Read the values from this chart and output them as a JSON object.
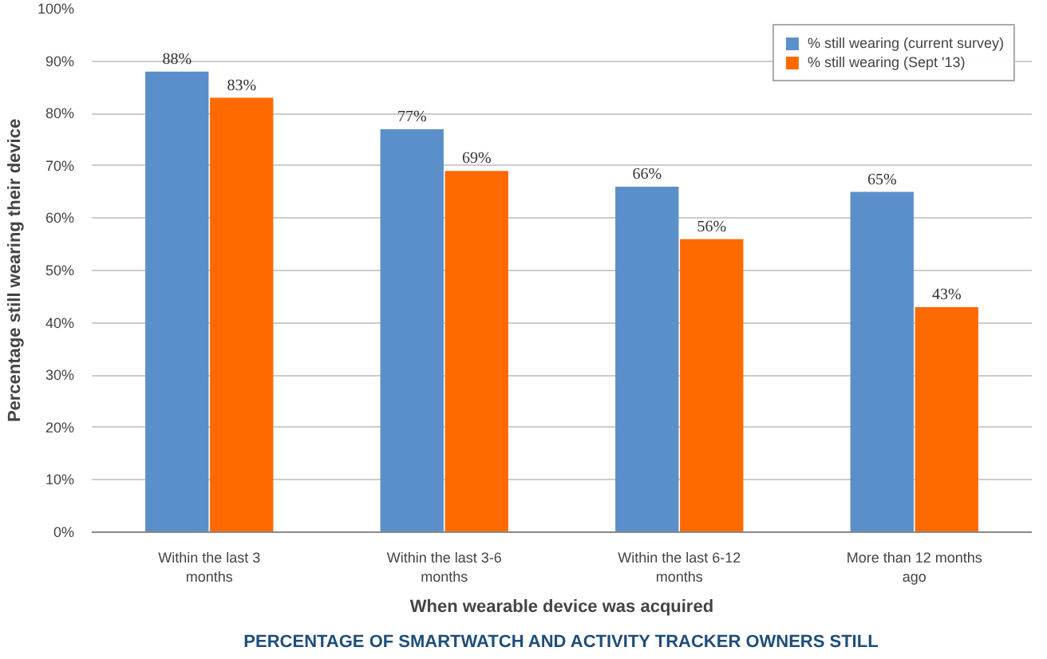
{
  "chart_data": {
    "type": "bar",
    "xlabel": "When wearable device was acquired",
    "ylabel": "Percentage still wearing their device",
    "categories": [
      "Within the last 3\nmonths",
      "Within the last 3-6\nmonths",
      "Within the last 6-12\nmonths",
      "More than 12 months\nago"
    ],
    "series": [
      {
        "name": "% still wearing (current survey)",
        "color": "#5b8fc9",
        "values": [
          88,
          77,
          66,
          65
        ],
        "value_labels": [
          "88%",
          "77%",
          "66%",
          "65%"
        ]
      },
      {
        "name": "% still wearing (Sept '13)",
        "color": "#ff6a00",
        "values": [
          83,
          69,
          56,
          43
        ],
        "value_labels": [
          "83%",
          "69%",
          "56%",
          "43%"
        ]
      }
    ],
    "ylim": [
      0,
      100
    ],
    "yticks": [
      {
        "value": 0,
        "label": "0%"
      },
      {
        "value": 10,
        "label": "10%"
      },
      {
        "value": 20,
        "label": "20%"
      },
      {
        "value": 30,
        "label": "30%"
      },
      {
        "value": 40,
        "label": "40%"
      },
      {
        "value": 50,
        "label": "50%"
      },
      {
        "value": 60,
        "label": "60%"
      },
      {
        "value": 70,
        "label": "70%"
      },
      {
        "value": 80,
        "label": "80%"
      },
      {
        "value": 90,
        "label": "90%"
      },
      {
        "value": 100,
        "label": "100%"
      }
    ],
    "grid": "y",
    "legend": "top right",
    "annotations": [
      "PERCENTAGE OF SMARTWATCH AND ACTIVITY TRACKER OWNERS STILL"
    ]
  }
}
